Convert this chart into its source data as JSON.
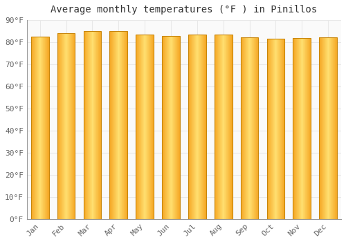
{
  "title": "Average monthly temperatures (°F ) in Pinillos",
  "months": [
    "Jan",
    "Feb",
    "Mar",
    "Apr",
    "May",
    "Jun",
    "Jul",
    "Aug",
    "Sep",
    "Oct",
    "Nov",
    "Dec"
  ],
  "values": [
    82.4,
    84.2,
    85.1,
    84.9,
    83.5,
    82.8,
    83.5,
    83.5,
    82.2,
    81.5,
    81.9,
    82.2
  ],
  "bar_color_center": "#FFD966",
  "bar_color_edge": "#F5A623",
  "bar_outline_color": "#C8860A",
  "ylim": [
    0,
    90
  ],
  "ytick_step": 10,
  "background_color": "#FFFFFF",
  "plot_background": "#FAFAFA",
  "grid_color": "#E8E8E8",
  "title_fontsize": 10,
  "tick_fontsize": 8,
  "bar_width": 0.68
}
